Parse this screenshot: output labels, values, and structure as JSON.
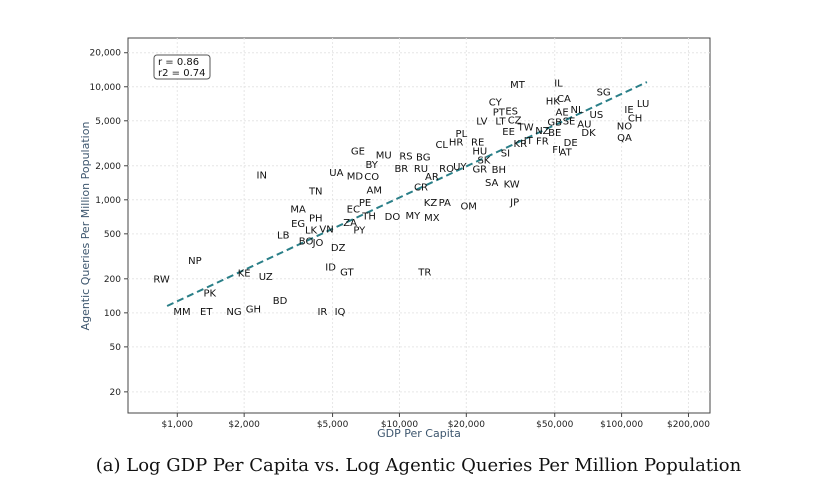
{
  "caption": "(a) Log GDP Per Capita vs. Log Agentic Queries Per Million Population",
  "chart_data": {
    "type": "scatter",
    "title": "",
    "xlabel": "GDP Per Capita",
    "ylabel": "Agentic Queries Per Million Population",
    "xscale": "log",
    "yscale": "log",
    "xlim": [
      600,
      250000
    ],
    "ylim": [
      13,
      27000
    ],
    "xticks": [
      1000,
      2000,
      5000,
      10000,
      20000,
      50000,
      100000,
      200000
    ],
    "xtick_labels": [
      "$1,000",
      "$2,000",
      "$5,000",
      "$10,000",
      "$20,000",
      "$50,000",
      "$100,000",
      "$200,000"
    ],
    "yticks": [
      20,
      50,
      100,
      200,
      500,
      1000,
      2000,
      5000,
      10000,
      20000
    ],
    "ytick_labels": [
      "20",
      "50",
      "100",
      "200",
      "500",
      "1,000",
      "2,000",
      "5,000",
      "10,000",
      "20,000"
    ],
    "grid": true,
    "stats": [
      "r = 0.86",
      "r2 = 0.74"
    ],
    "trendline": {
      "style": "dashed",
      "color": "#2a7f88",
      "x": [
        900,
        130000
      ],
      "y": [
        115,
        11000
      ]
    },
    "points": [
      {
        "label": "MT",
        "x": 34000,
        "y": 10500
      },
      {
        "label": "IL",
        "x": 52000,
        "y": 10800
      },
      {
        "label": "SG",
        "x": 83000,
        "y": 9000
      },
      {
        "label": "HK",
        "x": 49000,
        "y": 7500
      },
      {
        "label": "CA",
        "x": 55000,
        "y": 7900
      },
      {
        "label": "LU",
        "x": 125000,
        "y": 7100
      },
      {
        "label": "IE",
        "x": 108000,
        "y": 6300
      },
      {
        "label": "CH",
        "x": 115000,
        "y": 5300
      },
      {
        "label": "CY",
        "x": 27000,
        "y": 7300
      },
      {
        "label": "PT",
        "x": 28000,
        "y": 6000
      },
      {
        "label": "ES",
        "x": 32000,
        "y": 6100
      },
      {
        "label": "AE",
        "x": 54000,
        "y": 6000
      },
      {
        "label": "NL",
        "x": 63000,
        "y": 6300
      },
      {
        "label": "US",
        "x": 77000,
        "y": 5700
      },
      {
        "label": "LV",
        "x": 23500,
        "y": 5000
      },
      {
        "label": "LT",
        "x": 28500,
        "y": 5000
      },
      {
        "label": "CZ",
        "x": 33000,
        "y": 5100
      },
      {
        "label": "GB",
        "x": 50000,
        "y": 4900
      },
      {
        "label": "SE",
        "x": 58000,
        "y": 5000
      },
      {
        "label": "AU",
        "x": 68000,
        "y": 4700
      },
      {
        "label": "NO",
        "x": 103000,
        "y": 4500
      },
      {
        "label": "TW",
        "x": 37000,
        "y": 4400
      },
      {
        "label": "NZ",
        "x": 44000,
        "y": 4100
      },
      {
        "label": "EE",
        "x": 31000,
        "y": 4000
      },
      {
        "label": "BE",
        "x": 50000,
        "y": 3950
      },
      {
        "label": "DK",
        "x": 71000,
        "y": 3950
      },
      {
        "label": "QA",
        "x": 103000,
        "y": 3550
      },
      {
        "label": "PL",
        "x": 19000,
        "y": 3850
      },
      {
        "label": "IT",
        "x": 38000,
        "y": 3350
      },
      {
        "label": "FR",
        "x": 44000,
        "y": 3300
      },
      {
        "label": "KR",
        "x": 35000,
        "y": 3150
      },
      {
        "label": "DE",
        "x": 59000,
        "y": 3200
      },
      {
        "label": "HR",
        "x": 18000,
        "y": 3250
      },
      {
        "label": "RE",
        "x": 22500,
        "y": 3250
      },
      {
        "label": "CL",
        "x": 15500,
        "y": 3100
      },
      {
        "label": "FI",
        "x": 51000,
        "y": 2800
      },
      {
        "label": "AT",
        "x": 56000,
        "y": 2650
      },
      {
        "label": "HU",
        "x": 23000,
        "y": 2700
      },
      {
        "label": "SI",
        "x": 30000,
        "y": 2600
      },
      {
        "label": "GE",
        "x": 6500,
        "y": 2700
      },
      {
        "label": "MU",
        "x": 8500,
        "y": 2500
      },
      {
        "label": "RS",
        "x": 10700,
        "y": 2450
      },
      {
        "label": "BG",
        "x": 12800,
        "y": 2400
      },
      {
        "label": "SK",
        "x": 24000,
        "y": 2250
      },
      {
        "label": "BY",
        "x": 7500,
        "y": 2050
      },
      {
        "label": "BR",
        "x": 10200,
        "y": 1900
      },
      {
        "label": "RU",
        "x": 12500,
        "y": 1900
      },
      {
        "label": "RO",
        "x": 16300,
        "y": 1900
      },
      {
        "label": "UY",
        "x": 18700,
        "y": 1980
      },
      {
        "label": "GR",
        "x": 23000,
        "y": 1870
      },
      {
        "label": "BH",
        "x": 28000,
        "y": 1850
      },
      {
        "label": "UA",
        "x": 5200,
        "y": 1750
      },
      {
        "label": "MD",
        "x": 6300,
        "y": 1620
      },
      {
        "label": "CO",
        "x": 7500,
        "y": 1600
      },
      {
        "label": "IN",
        "x": 2400,
        "y": 1650
      },
      {
        "label": "AR",
        "x": 14000,
        "y": 1600
      },
      {
        "label": "SA",
        "x": 26000,
        "y": 1420
      },
      {
        "label": "KW",
        "x": 32000,
        "y": 1380
      },
      {
        "label": "TN",
        "x": 4200,
        "y": 1200
      },
      {
        "label": "AM",
        "x": 7700,
        "y": 1220
      },
      {
        "label": "CR",
        "x": 12500,
        "y": 1300
      },
      {
        "label": "JP",
        "x": 33000,
        "y": 960
      },
      {
        "label": "PE",
        "x": 7000,
        "y": 950
      },
      {
        "label": "KZ",
        "x": 13800,
        "y": 950
      },
      {
        "label": "PA",
        "x": 16000,
        "y": 950
      },
      {
        "label": "OM",
        "x": 20500,
        "y": 880
      },
      {
        "label": "MA",
        "x": 3500,
        "y": 830
      },
      {
        "label": "EC",
        "x": 6200,
        "y": 830
      },
      {
        "label": "TH",
        "x": 7300,
        "y": 720
      },
      {
        "label": "DO",
        "x": 9300,
        "y": 710
      },
      {
        "label": "MY",
        "x": 11500,
        "y": 730
      },
      {
        "label": "MX",
        "x": 14000,
        "y": 700
      },
      {
        "label": "PH",
        "x": 4200,
        "y": 690
      },
      {
        "label": "ZA",
        "x": 6000,
        "y": 630
      },
      {
        "label": "EG",
        "x": 3500,
        "y": 620
      },
      {
        "label": "LK",
        "x": 4000,
        "y": 540
      },
      {
        "label": "VN",
        "x": 4700,
        "y": 550
      },
      {
        "label": "PY",
        "x": 6600,
        "y": 540
      },
      {
        "label": "LB",
        "x": 3000,
        "y": 490
      },
      {
        "label": "BO",
        "x": 3800,
        "y": 430
      },
      {
        "label": "JO",
        "x": 4300,
        "y": 420
      },
      {
        "label": "DZ",
        "x": 5300,
        "y": 380
      },
      {
        "label": "NP",
        "x": 1200,
        "y": 290
      },
      {
        "label": "ID",
        "x": 4900,
        "y": 255
      },
      {
        "label": "GT",
        "x": 5800,
        "y": 230
      },
      {
        "label": "TR",
        "x": 13000,
        "y": 230
      },
      {
        "label": "KE",
        "x": 2000,
        "y": 225
      },
      {
        "label": "UZ",
        "x": 2500,
        "y": 210
      },
      {
        "label": "RW",
        "x": 850,
        "y": 200
      },
      {
        "label": "PK",
        "x": 1400,
        "y": 150
      },
      {
        "label": "BD",
        "x": 2900,
        "y": 128
      },
      {
        "label": "MM",
        "x": 1050,
        "y": 103
      },
      {
        "label": "ET",
        "x": 1350,
        "y": 103
      },
      {
        "label": "NG",
        "x": 1800,
        "y": 103
      },
      {
        "label": "GH",
        "x": 2200,
        "y": 108
      },
      {
        "label": "IR",
        "x": 4500,
        "y": 103
      },
      {
        "label": "IQ",
        "x": 5400,
        "y": 103
      }
    ]
  }
}
